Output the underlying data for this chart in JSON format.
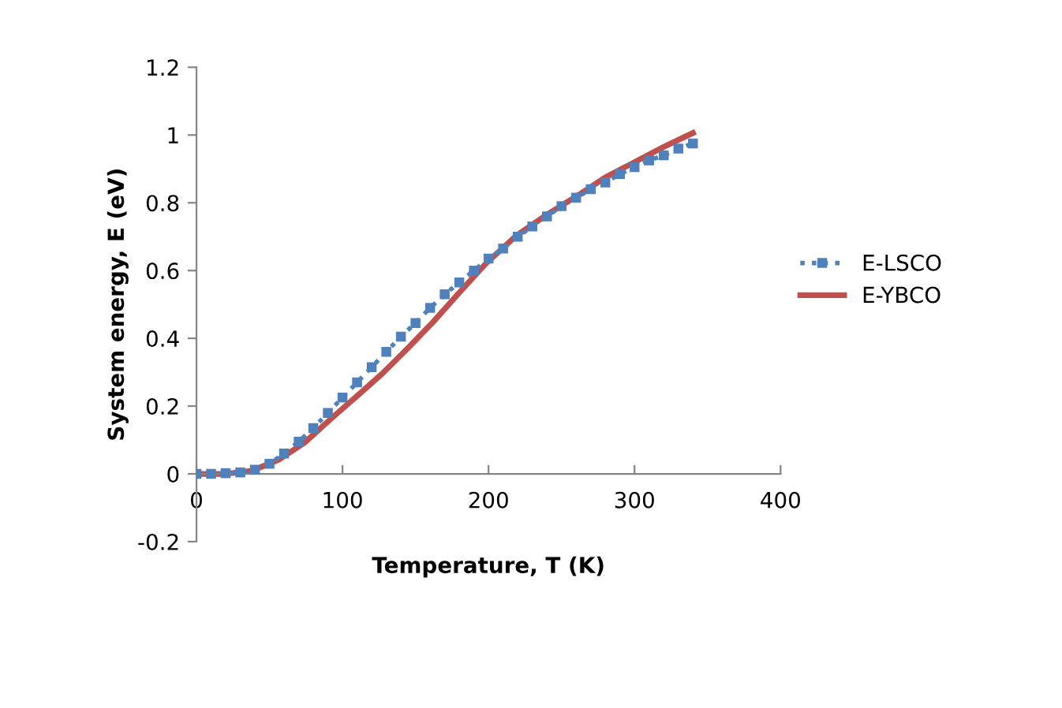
{
  "chart_data": {
    "type": "line",
    "xlabel": "Temperature, T (K)",
    "ylabel": "System energy, E (eV)",
    "xlim": [
      0,
      400
    ],
    "xticks": [
      0,
      100,
      200,
      300,
      400
    ],
    "ylim": [
      -0.2,
      1.2
    ],
    "yticks": [
      -0.2,
      0,
      0.2,
      0.4,
      0.6,
      0.8,
      1,
      1.2
    ],
    "grid": false,
    "legend": "right",
    "series": [
      {
        "name": "E-LSCO",
        "color": "#4f81bd",
        "marker": "square",
        "line_style": "dotted",
        "x": [
          0,
          10,
          20,
          30,
          40,
          50,
          60,
          70,
          80,
          90,
          100,
          110,
          120,
          130,
          140,
          150,
          160,
          170,
          180,
          190,
          200,
          210,
          220,
          230,
          240,
          250,
          260,
          270,
          280,
          290,
          300,
          310,
          320,
          330,
          340
        ],
        "values": [
          0,
          0,
          0.002,
          0.004,
          0.012,
          0.03,
          0.06,
          0.095,
          0.135,
          0.18,
          0.225,
          0.27,
          0.315,
          0.36,
          0.405,
          0.445,
          0.49,
          0.53,
          0.565,
          0.6,
          0.635,
          0.665,
          0.7,
          0.73,
          0.76,
          0.79,
          0.815,
          0.84,
          0.86,
          0.885,
          0.905,
          0.925,
          0.94,
          0.96,
          0.975
        ]
      },
      {
        "name": "E-YBCO",
        "color": "#c0504d",
        "marker": "none",
        "line_style": "solid",
        "x": [
          0,
          20,
          38,
          56,
          74,
          92,
          110,
          127,
          145,
          162,
          180,
          198,
          219,
          240,
          262,
          280,
          300,
          320,
          340
        ],
        "values": [
          0,
          0,
          0.009,
          0.041,
          0.092,
          0.162,
          0.23,
          0.295,
          0.372,
          0.448,
          0.535,
          0.62,
          0.703,
          0.765,
          0.824,
          0.875,
          0.92,
          0.965,
          1.006
        ]
      }
    ]
  }
}
